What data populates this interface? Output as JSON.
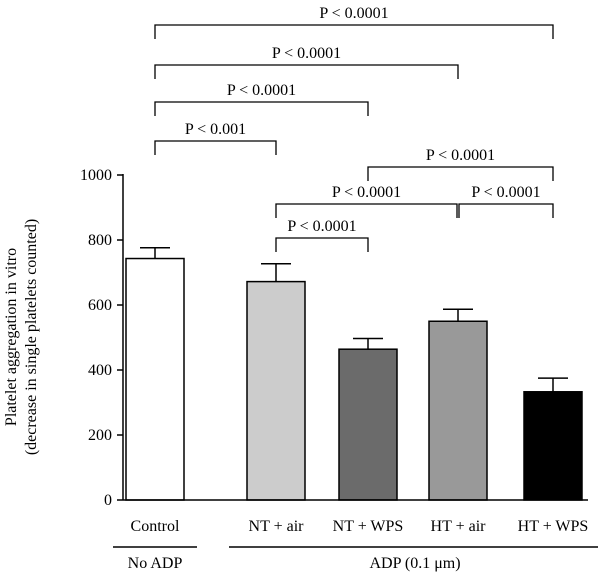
{
  "chart_data": {
    "type": "bar",
    "ylabel_line1": "Platelet aggregation in vitro",
    "ylabel_line2": "(decrease in single platelets counted)",
    "ylim": [
      0,
      1000
    ],
    "yticks": [
      0,
      200,
      400,
      600,
      800,
      1000
    ],
    "categories": [
      "Control",
      "NT + air",
      "NT + WPS",
      "HT + air",
      "HT + WPS"
    ],
    "values": [
      743,
      672,
      464,
      550,
      333
    ],
    "errors": [
      33,
      55,
      33,
      37,
      42
    ],
    "colors": [
      "#ffffff",
      "#cccccc",
      "#6b6b6b",
      "#999999",
      "#000000"
    ],
    "groups": [
      {
        "label": "No ADP",
        "categories": [
          0
        ]
      },
      {
        "label": "ADP (0.1 μm)",
        "categories": [
          1,
          2,
          3,
          4
        ]
      }
    ],
    "comparisons": [
      {
        "from": 0,
        "to": 4,
        "label": "P < 0.0001"
      },
      {
        "from": 0,
        "to": 3,
        "label": "P < 0.0001"
      },
      {
        "from": 0,
        "to": 2,
        "label": "P < 0.0001"
      },
      {
        "from": 0,
        "to": 1,
        "label": "P < 0.001"
      },
      {
        "from": 2,
        "to": 4,
        "label": "P < 0.0001"
      },
      {
        "from": 1,
        "to": 3,
        "label": "P < 0.0001"
      },
      {
        "from": 3,
        "to": 4,
        "label": "P < 0.0001"
      },
      {
        "from": 1,
        "to": 2,
        "label": "P < 0.0001"
      }
    ]
  }
}
